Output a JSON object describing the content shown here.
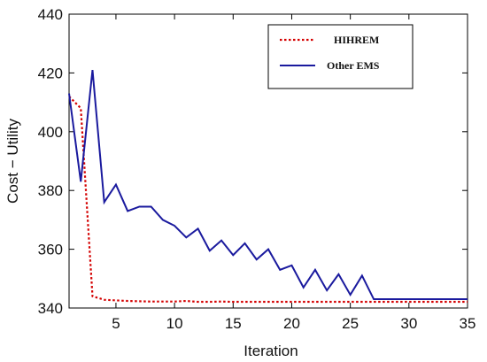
{
  "chart_data": {
    "type": "line",
    "title": "",
    "xlabel": "Iteration",
    "ylabel": "Cost − Utility",
    "xlim": [
      1,
      35
    ],
    "ylim": [
      340,
      440
    ],
    "xticks": [
      5,
      10,
      15,
      20,
      25,
      30,
      35
    ],
    "xtick_labels": [
      "5",
      "10",
      "15",
      "20",
      "25",
      "30",
      "35"
    ],
    "yticks": [
      340,
      360,
      380,
      400,
      420,
      440
    ],
    "ytick_labels": [
      "340",
      "360",
      "380",
      "400",
      "420",
      "440"
    ],
    "grid": false,
    "legend_position": "top-right",
    "series": [
      {
        "name": "HIHREM",
        "color": "#d40000",
        "style": "dotted",
        "x": [
          1,
          2,
          3,
          4,
          5,
          6,
          7,
          8,
          9,
          10,
          11,
          12,
          13,
          14,
          15,
          16,
          17,
          18,
          19,
          20,
          21,
          22,
          23,
          24,
          25,
          26,
          27,
          28,
          29,
          30,
          31,
          32,
          33,
          34,
          35
        ],
        "y": [
          412,
          408,
          344,
          342.8,
          342.6,
          342.4,
          342.3,
          342.2,
          342.2,
          342.2,
          342.4,
          342.1,
          342.1,
          342.2,
          342.1,
          342.1,
          342.1,
          342.1,
          342.1,
          342.1,
          342.1,
          342.1,
          342.1,
          342.1,
          342.1,
          342.1,
          342.1,
          342.1,
          342.1,
          342.1,
          342.1,
          342.1,
          342.1,
          342.1,
          342.1
        ]
      },
      {
        "name": "Other EMS",
        "color": "#1a1a9e",
        "style": "solid",
        "x": [
          1,
          2,
          3,
          4,
          5,
          6,
          7,
          8,
          9,
          10,
          11,
          12,
          13,
          14,
          15,
          16,
          17,
          18,
          19,
          20,
          21,
          22,
          23,
          24,
          25,
          26,
          27,
          28,
          29,
          30,
          31,
          32,
          33,
          34,
          35
        ],
        "y": [
          413,
          383,
          421,
          376,
          382,
          373,
          374.5,
          374.5,
          370,
          368,
          364,
          367,
          359.5,
          363,
          358,
          362,
          356.5,
          360,
          353,
          354.5,
          347,
          353,
          346,
          351.5,
          344.5,
          351,
          343,
          343,
          343,
          343,
          343,
          343,
          343,
          343,
          343
        ]
      }
    ]
  }
}
